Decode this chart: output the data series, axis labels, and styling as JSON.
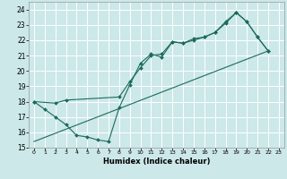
{
  "xlabel": "Humidex (Indice chaleur)",
  "bg_color": "#cce8e8",
  "grid_color": "#ffffff",
  "line_color": "#1a6b5a",
  "xlim": [
    0,
    23
  ],
  "ylim": [
    15,
    24.5
  ],
  "xticks": [
    0,
    1,
    2,
    3,
    4,
    5,
    6,
    7,
    8,
    9,
    10,
    11,
    12,
    13,
    14,
    15,
    16,
    17,
    18,
    19,
    20,
    21,
    22,
    23
  ],
  "yticks": [
    15,
    16,
    17,
    18,
    19,
    20,
    21,
    22,
    23,
    24
  ],
  "line1_x": [
    0,
    1,
    2,
    3,
    4,
    5,
    6,
    7,
    8,
    9,
    10,
    11,
    12,
    13,
    14,
    15,
    16,
    17,
    18,
    19,
    20,
    21,
    22
  ],
  "line1_y": [
    18.0,
    17.5,
    17.0,
    16.5,
    15.8,
    15.7,
    15.5,
    15.4,
    17.6,
    19.1,
    20.5,
    21.1,
    20.9,
    21.9,
    21.8,
    22.0,
    22.2,
    22.5,
    23.1,
    23.8,
    23.2,
    22.2,
    21.3
  ],
  "line2_x": [
    0,
    2,
    3,
    8,
    9,
    10,
    11,
    12,
    13,
    14,
    15,
    16,
    17,
    18,
    19,
    20,
    21,
    22
  ],
  "line2_y": [
    18.0,
    17.9,
    18.1,
    18.3,
    19.3,
    20.2,
    21.0,
    21.1,
    21.9,
    21.8,
    22.1,
    22.2,
    22.5,
    23.2,
    23.8,
    23.2,
    22.2,
    21.3
  ],
  "line3_x": [
    0,
    22
  ],
  "line3_y": [
    15.4,
    21.3
  ]
}
